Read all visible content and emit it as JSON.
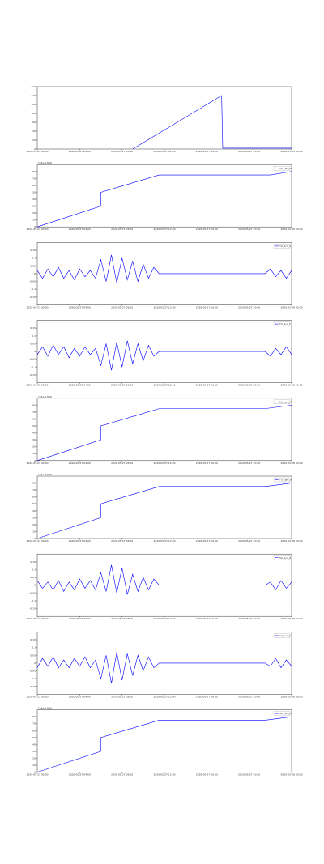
{
  "chart_data": [
    {
      "type": "line",
      "x": [
        9,
        17.4,
        17.5,
        24
      ],
      "series": [
        {
          "color": "#0000ff",
          "values": [
            0,
            120,
            2,
            2
          ]
        }
      ],
      "xlim": [
        0,
        24
      ],
      "ylim": [
        0,
        140
      ],
      "yticks": [
        0,
        20,
        40,
        60,
        80,
        100,
        120,
        140
      ],
      "xticks": [
        {
          "value": 0,
          "label": "2020-05-27 00:00"
        },
        {
          "value": 4,
          "label": "2020-05-27 04:00"
        },
        {
          "value": 8,
          "label": "2020-05-27 08:00"
        },
        {
          "value": 12,
          "label": "2020-05-27 12:00"
        },
        {
          "value": 16,
          "label": "2020-05-27 16:00"
        },
        {
          "value": 20,
          "label": "2020-05-27 20:00"
        },
        {
          "value": 24,
          "label": "2020-05-28 00:00"
        }
      ]
    },
    {
      "type": "line",
      "offset_text": "1e6+8.8e6",
      "x": [
        0,
        6,
        6,
        11.5,
        22,
        24
      ],
      "series": [
        {
          "name": "1X_rpm_X",
          "color": "#0000ff",
          "values": [
            0,
            30,
            50,
            75,
            75,
            80
          ]
        }
      ],
      "xlim": [
        0,
        24
      ],
      "ylim": [
        0,
        90
      ],
      "yticks": [
        0,
        10,
        20,
        30,
        40,
        50,
        60,
        70,
        80
      ],
      "xticks": [
        {
          "value": 0,
          "label": "2020-05-27 00:00"
        },
        {
          "value": 4,
          "label": "2020-05-27 04:00"
        },
        {
          "value": 8,
          "label": "2020-05-27 08:00"
        },
        {
          "value": 12,
          "label": "2020-05-27 12:00"
        },
        {
          "value": 16,
          "label": "2020-05-27 16:00"
        },
        {
          "value": 20,
          "label": "2020-05-27 20:00"
        },
        {
          "value": 24,
          "label": "2020-05-28 00:00"
        }
      ],
      "legend": "upper right"
    },
    {
      "type": "line",
      "x": [
        0,
        0.5,
        1,
        1.5,
        2,
        2.5,
        3,
        3.5,
        4,
        4.5,
        5,
        5.5,
        6,
        6.5,
        7,
        7.5,
        8,
        8.5,
        9,
        9.5,
        10,
        10.5,
        11,
        11.5,
        21.5,
        22,
        22.5,
        23,
        23.5,
        24
      ],
      "series": [
        {
          "name": "1X_acc_X",
          "color": "#0000ff",
          "values": [
            0.02,
            -0.03,
            0.03,
            -0.02,
            0.04,
            -0.03,
            0.02,
            -0.04,
            0.03,
            -0.02,
            0.02,
            -0.03,
            0.09,
            -0.05,
            0.12,
            -0.06,
            0.1,
            -0.04,
            0.08,
            -0.05,
            0.06,
            -0.03,
            0.04,
            0,
            0,
            0.03,
            -0.02,
            0.02,
            -0.03,
            0.02
          ]
        }
      ],
      "xlim": [
        0,
        24
      ],
      "ylim": [
        -0.2,
        0.2
      ],
      "yticks": [
        -0.15,
        -0.1,
        -0.05,
        0,
        0.05,
        0.1,
        0.15
      ],
      "xticks": [
        {
          "value": 0,
          "label": "2020-05-27 00:00"
        },
        {
          "value": 4,
          "label": "2020-05-27 04:00"
        },
        {
          "value": 8,
          "label": "2020-05-27 08:00"
        },
        {
          "value": 12,
          "label": "2020-05-27 12:00"
        },
        {
          "value": 16,
          "label": "2020-05-27 16:00"
        },
        {
          "value": 20,
          "label": "2020-05-27 20:00"
        },
        {
          "value": 24,
          "label": "2020-05-28 00:00"
        }
      ],
      "legend": "upper right"
    },
    {
      "type": "line",
      "x": [
        0,
        0.5,
        1,
        1.5,
        2,
        2.5,
        3,
        3.5,
        4,
        4.5,
        5,
        5.5,
        6,
        6.5,
        7,
        7.5,
        8,
        8.5,
        9,
        9.5,
        10,
        10.5,
        11,
        11.5,
        21.5,
        22,
        22.5,
        23,
        23.5,
        24
      ],
      "series": [
        {
          "name": "TX_acc_Y",
          "color": "#0000ff",
          "values": [
            -0.02,
            0.03,
            -0.03,
            0.04,
            -0.02,
            0.03,
            -0.04,
            0.02,
            -0.03,
            0.03,
            -0.02,
            0.02,
            -0.09,
            0.05,
            -0.12,
            0.06,
            -0.1,
            0.07,
            -0.08,
            0.05,
            -0.06,
            0.04,
            -0.03,
            0,
            0,
            -0.03,
            0.02,
            -0.02,
            0.03,
            -0.02
          ]
        }
      ],
      "xlim": [
        0,
        24
      ],
      "ylim": [
        -0.2,
        0.2
      ],
      "yticks": [
        -0.15,
        -0.1,
        -0.05,
        0,
        0.05,
        0.1,
        0.15
      ],
      "xticks": [
        {
          "value": 0,
          "label": "2020-05-27 00:00"
        },
        {
          "value": 4,
          "label": "2020-05-27 04:00"
        },
        {
          "value": 8,
          "label": "2020-05-27 08:00"
        },
        {
          "value": 12,
          "label": "2020-05-27 12:00"
        },
        {
          "value": 16,
          "label": "2020-05-27 16:00"
        },
        {
          "value": 20,
          "label": "2020-05-27 20:00"
        },
        {
          "value": 24,
          "label": "2020-05-28 00:00"
        }
      ],
      "legend": "upper right"
    },
    {
      "type": "line",
      "offset_text": "1e6+8.8e6",
      "x": [
        0,
        6,
        6,
        11.5,
        21.5,
        24
      ],
      "series": [
        {
          "name": "1X_rpm_Y",
          "color": "#0000ff",
          "values": [
            0,
            30,
            50,
            75,
            75,
            80
          ]
        }
      ],
      "xlim": [
        0,
        24
      ],
      "ylim": [
        0,
        90
      ],
      "yticks": [
        0,
        10,
        20,
        30,
        40,
        50,
        60,
        70,
        80
      ],
      "xticks": [
        {
          "value": 0,
          "label": "2020-05-27 00:00"
        },
        {
          "value": 4,
          "label": "2020-05-27 04:00"
        },
        {
          "value": 8,
          "label": "2020-05-27 08:00"
        },
        {
          "value": 12,
          "label": "2020-05-27 12:00"
        },
        {
          "value": 16,
          "label": "2020-05-27 16:00"
        },
        {
          "value": 20,
          "label": "2020-05-27 20:00"
        },
        {
          "value": 24,
          "label": "2020-05-28 00:00"
        }
      ],
      "legend": "upper right"
    },
    {
      "type": "line",
      "offset_text": "1e6+8.8e6",
      "x": [
        0,
        6,
        6,
        11.5,
        21.5,
        24
      ],
      "series": [
        {
          "name": "TX_rpm_X",
          "color": "#0000ff",
          "values": [
            0,
            30,
            50,
            75,
            75,
            80
          ]
        }
      ],
      "xlim": [
        0,
        24
      ],
      "ylim": [
        0,
        90
      ],
      "yticks": [
        0,
        10,
        20,
        30,
        40,
        50,
        60,
        70,
        80
      ],
      "xticks": [
        {
          "value": 0,
          "label": "2020-05-27 00:00"
        },
        {
          "value": 4,
          "label": "2020-05-27 04:00"
        },
        {
          "value": 8,
          "label": "2020-05-27 08:00"
        },
        {
          "value": 12,
          "label": "2020-05-27 12:00"
        },
        {
          "value": 16,
          "label": "2020-05-27 16:00"
        },
        {
          "value": 20,
          "label": "2020-05-27 20:00"
        },
        {
          "value": 24,
          "label": "2020-05-28 00:00"
        }
      ],
      "legend": "upper right"
    },
    {
      "type": "line",
      "x": [
        0,
        0.5,
        1,
        1.5,
        2,
        2.5,
        3,
        3.5,
        4,
        4.5,
        5,
        5.5,
        6,
        6.5,
        7,
        7.5,
        8,
        8.5,
        9,
        9.5,
        10,
        10.5,
        11,
        11.5,
        21.5,
        22,
        22.5,
        23,
        23.5,
        24
      ],
      "series": [
        {
          "name": "SX_acc_X",
          "color": "#0000ff",
          "values": [
            0.03,
            -0.02,
            0.02,
            -0.03,
            0.03,
            -0.04,
            0.02,
            -0.03,
            0.04,
            -0.02,
            0.03,
            -0.03,
            0.08,
            -0.04,
            0.13,
            -0.05,
            0.11,
            -0.06,
            0.07,
            -0.04,
            0.05,
            -0.03,
            0.04,
            0,
            0,
            0.02,
            -0.03,
            0.03,
            -0.02,
            0.02
          ]
        }
      ],
      "xlim": [
        0,
        24
      ],
      "ylim": [
        -0.2,
        0.2
      ],
      "yticks": [
        -0.15,
        -0.1,
        -0.05,
        0,
        0.05,
        0.1,
        0.15
      ],
      "xticks": [
        {
          "value": 0,
          "label": "2020-05-27 00:00"
        },
        {
          "value": 4,
          "label": "2020-05-27 04:00"
        },
        {
          "value": 8,
          "label": "2020-05-27 08:00"
        },
        {
          "value": 12,
          "label": "2020-05-27 12:00"
        },
        {
          "value": 16,
          "label": "2020-05-27 16:00"
        },
        {
          "value": 20,
          "label": "2020-05-27 20:00"
        },
        {
          "value": 24,
          "label": "2020-05-28 00:00"
        }
      ],
      "legend": "upper right"
    },
    {
      "type": "line",
      "x": [
        0,
        0.5,
        1,
        1.5,
        2,
        2.5,
        3,
        3.5,
        4,
        4.5,
        5,
        5.5,
        6,
        6.5,
        7,
        7.5,
        8,
        8.5,
        9,
        9.5,
        10,
        10.5,
        11,
        11.5,
        21.5,
        22,
        22.5,
        23,
        23.5,
        24
      ],
      "series": [
        {
          "name": "1Y_acc_Y",
          "color": "#0000ff",
          "values": [
            -0.03,
            0.03,
            -0.02,
            0.04,
            -0.03,
            0.02,
            -0.03,
            0.03,
            -0.02,
            0.04,
            -0.03,
            0.02,
            -0.1,
            0.05,
            -0.13,
            0.07,
            -0.11,
            0.06,
            -0.08,
            0.05,
            -0.05,
            0.04,
            -0.03,
            0,
            0,
            -0.02,
            0.03,
            -0.03,
            0.02,
            -0.02
          ]
        }
      ],
      "xlim": [
        0,
        24
      ],
      "ylim": [
        -0.2,
        0.2
      ],
      "yticks": [
        -0.15,
        -0.1,
        -0.05,
        0,
        0.05,
        0.1,
        0.15
      ],
      "xticks": [
        {
          "value": 0,
          "label": "2020-05-27 00:00"
        },
        {
          "value": 4,
          "label": "2020-05-27 04:00"
        },
        {
          "value": 8,
          "label": "2020-05-27 08:00"
        },
        {
          "value": 12,
          "label": "2020-05-27 12:00"
        },
        {
          "value": 16,
          "label": "2020-05-27 16:00"
        },
        {
          "value": 20,
          "label": "2020-05-27 20:00"
        },
        {
          "value": 24,
          "label": "2020-05-28 00:00"
        }
      ],
      "legend": "upper right"
    },
    {
      "type": "line",
      "offset_text": "1e6+8.8e6",
      "x": [
        0,
        6,
        6,
        11.5,
        21.5,
        24
      ],
      "series": [
        {
          "name": "SX_rpm_X",
          "color": "#0000ff",
          "values": [
            0,
            30,
            50,
            75,
            75,
            80
          ]
        }
      ],
      "xlim": [
        0,
        24
      ],
      "ylim": [
        0,
        90
      ],
      "yticks": [
        0,
        10,
        20,
        30,
        40,
        50,
        60,
        70,
        80
      ],
      "xticks": [
        {
          "value": 0,
          "label": "2020-05-27 00:00"
        },
        {
          "value": 4,
          "label": "2020-05-27 04:00"
        },
        {
          "value": 8,
          "label": "2020-05-27 08:00"
        },
        {
          "value": 12,
          "label": "2020-05-27 12:00"
        },
        {
          "value": 16,
          "label": "2020-05-27 16:00"
        },
        {
          "value": 20,
          "label": "2020-05-27 20:00"
        },
        {
          "value": 24,
          "label": "2020-05-28 00:00"
        }
      ],
      "legend": "upper right"
    }
  ]
}
